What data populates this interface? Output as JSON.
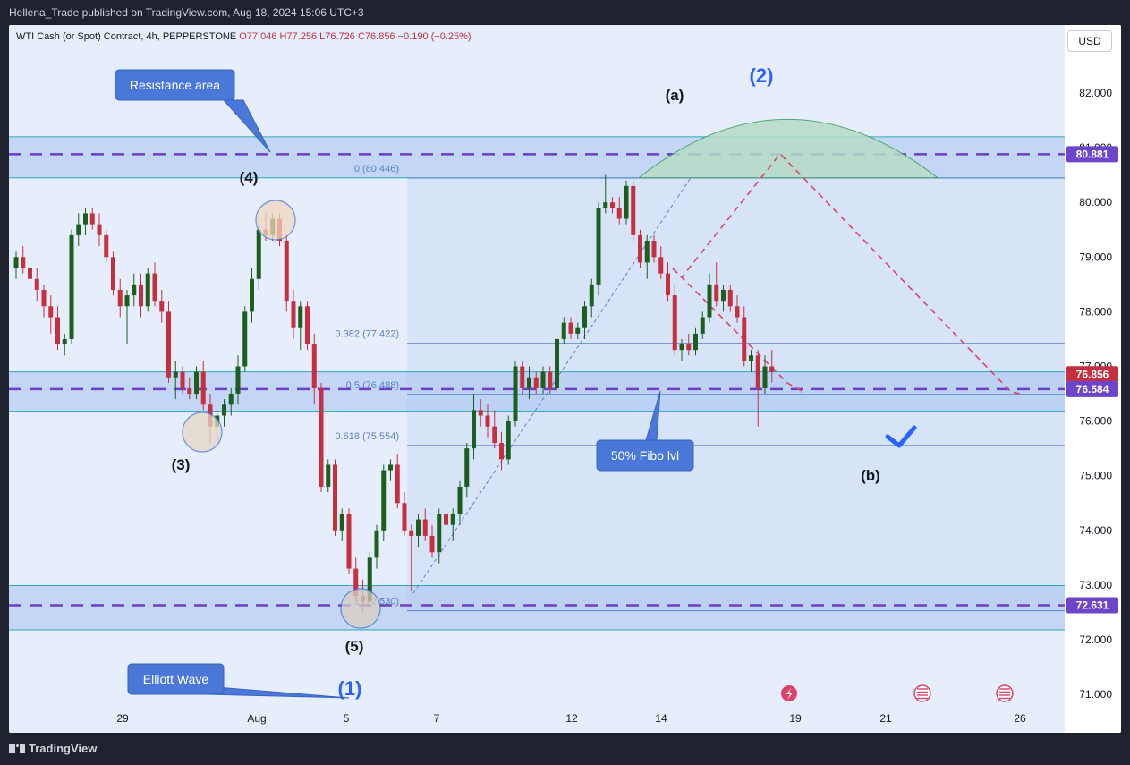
{
  "header": {
    "publisher": "Hellena_Trade published on TradingView.com, Aug 18, 2024 15:06 UTC+3"
  },
  "legend": {
    "symbol": "WTI Cash (or Spot) Contract, 4h, PEPPERSTONE",
    "open": "O77.046",
    "high": "H77.256",
    "low": "L76.726",
    "close": "C76.856",
    "change": "−0.190 (−0.25%)"
  },
  "currency": "USD",
  "footer": {
    "brand": "TradingView"
  },
  "colors": {
    "up": "#1b5e20",
    "down": "#c62f3f",
    "zone": "#a6c3f2",
    "dash": "#6c3fc4",
    "badge_purple": "#6c45c8",
    "badge_red": "#c62f3f"
  },
  "chart_data": {
    "type": "candlestick",
    "y_axis": {
      "range": [
        70.6,
        83.2
      ],
      "ticks": [
        "82.000",
        "81.000",
        "80.000",
        "79.000",
        "78.000",
        "77.000",
        "76.000",
        "75.000",
        "74.000",
        "73.000",
        "72.000",
        "71.000"
      ]
    },
    "x_axis": {
      "ticks": [
        "29",
        "Aug",
        "5",
        "7",
        "12",
        "14",
        "19",
        "21",
        "26"
      ]
    },
    "price_badges": [
      {
        "value": "80.881",
        "price": 80.881,
        "color": "#6c45c8"
      },
      {
        "value": "76.856",
        "price": 76.856,
        "color": "#c62f3f"
      },
      {
        "value": "76.584",
        "price": 76.584,
        "color": "#6c45c8"
      },
      {
        "value": "72.631",
        "price": 72.631,
        "color": "#6c45c8"
      }
    ],
    "zones": [
      {
        "top": 81.2,
        "bottom": 80.45
      },
      {
        "top": 76.9,
        "bottom": 76.18
      },
      {
        "top": 72.99,
        "bottom": 72.18
      }
    ],
    "dashed_levels": [
      80.881,
      76.584,
      72.631
    ],
    "fib": {
      "from": 72.53,
      "to": 80.446,
      "levels": [
        {
          "label": "0 (80.446)",
          "price": 80.446
        },
        {
          "label": "0.382 (77.422)",
          "price": 77.422
        },
        {
          "label": "0.5 (76.488)",
          "price": 76.488
        },
        {
          "label": "0.618 (75.554)",
          "price": 75.554
        },
        {
          "label": "1 (72.530)",
          "price": 72.53
        }
      ]
    },
    "waves": [
      {
        "label": "(4)"
      },
      {
        "label": "(3)"
      },
      {
        "label": "(5)"
      },
      {
        "label": "(a)"
      },
      {
        "label": "(b)"
      }
    ],
    "big_waves": [
      {
        "label": "(2)"
      },
      {
        "label": "(1)"
      }
    ],
    "callouts": [
      {
        "label": "Resistance area"
      },
      {
        "label": "50% Fibo lvl"
      },
      {
        "label": "Elliott Wave"
      }
    ],
    "candles": [
      [
        78.8,
        79.1,
        78.6,
        79.0
      ],
      [
        79.0,
        79.2,
        78.7,
        78.8
      ],
      [
        78.8,
        79.0,
        78.5,
        78.6
      ],
      [
        78.6,
        78.8,
        78.2,
        78.4
      ],
      [
        78.4,
        78.5,
        77.9,
        78.1
      ],
      [
        78.1,
        78.3,
        77.6,
        77.9
      ],
      [
        77.9,
        78.1,
        77.3,
        77.4
      ],
      [
        77.4,
        77.6,
        77.2,
        77.5
      ],
      [
        77.5,
        79.5,
        77.4,
        79.4
      ],
      [
        79.4,
        79.8,
        79.2,
        79.6
      ],
      [
        79.6,
        79.9,
        79.4,
        79.8
      ],
      [
        79.8,
        79.9,
        79.5,
        79.6
      ],
      [
        79.6,
        79.8,
        79.2,
        79.4
      ],
      [
        79.4,
        79.5,
        78.9,
        79.0
      ],
      [
        79.0,
        79.1,
        78.3,
        78.4
      ],
      [
        78.4,
        78.6,
        77.9,
        78.1
      ],
      [
        78.1,
        78.4,
        77.4,
        78.3
      ],
      [
        78.3,
        78.7,
        78.1,
        78.5
      ],
      [
        78.5,
        78.7,
        77.9,
        78.1
      ],
      [
        78.1,
        78.8,
        78.0,
        78.7
      ],
      [
        78.7,
        78.9,
        78.1,
        78.2
      ],
      [
        78.2,
        78.4,
        77.8,
        78.0
      ],
      [
        78.0,
        78.2,
        76.7,
        76.8
      ],
      [
        76.8,
        77.1,
        76.4,
        76.9
      ],
      [
        76.9,
        77.0,
        76.5,
        76.6
      ],
      [
        76.6,
        76.8,
        76.4,
        76.5
      ],
      [
        76.5,
        77.0,
        76.4,
        76.9
      ],
      [
        76.9,
        77.1,
        76.2,
        76.3
      ],
      [
        76.3,
        76.5,
        75.6,
        75.9
      ],
      [
        75.9,
        76.2,
        75.6,
        76.1
      ],
      [
        76.1,
        76.4,
        75.9,
        76.3
      ],
      [
        76.3,
        76.6,
        76.1,
        76.5
      ],
      [
        76.5,
        77.2,
        76.3,
        77.0
      ],
      [
        77.0,
        78.1,
        76.9,
        78.0
      ],
      [
        78.0,
        78.8,
        77.8,
        78.6
      ],
      [
        78.6,
        79.7,
        78.4,
        79.5
      ],
      [
        79.5,
        79.8,
        79.3,
        79.4
      ],
      [
        79.4,
        79.8,
        79.3,
        79.7
      ],
      [
        79.7,
        79.8,
        79.2,
        79.3
      ],
      [
        79.3,
        79.4,
        78.0,
        78.2
      ],
      [
        78.2,
        78.4,
        77.5,
        77.7
      ],
      [
        77.7,
        78.2,
        77.3,
        78.1
      ],
      [
        78.1,
        78.2,
        77.3,
        77.4
      ],
      [
        77.4,
        77.6,
        76.3,
        76.6
      ],
      [
        76.6,
        76.7,
        74.7,
        74.8
      ],
      [
        74.8,
        75.3,
        74.7,
        75.2
      ],
      [
        75.2,
        75.3,
        73.9,
        74.0
      ],
      [
        74.0,
        74.4,
        73.8,
        74.3
      ],
      [
        74.3,
        74.4,
        73.2,
        73.3
      ],
      [
        73.3,
        73.5,
        72.7,
        72.8
      ],
      [
        72.8,
        73.1,
        72.5,
        72.7
      ],
      [
        72.7,
        73.6,
        72.6,
        73.5
      ],
      [
        73.5,
        74.1,
        73.3,
        74.0
      ],
      [
        74.0,
        75.2,
        73.8,
        75.1
      ],
      [
        75.1,
        75.3,
        74.9,
        75.2
      ],
      [
        75.2,
        75.4,
        74.4,
        74.5
      ],
      [
        74.5,
        74.7,
        73.9,
        74.0
      ],
      [
        74.0,
        74.1,
        72.9,
        73.9
      ],
      [
        73.9,
        74.3,
        73.7,
        74.2
      ],
      [
        74.2,
        74.4,
        73.8,
        73.9
      ],
      [
        73.9,
        74.1,
        73.5,
        73.6
      ],
      [
        73.6,
        74.4,
        73.4,
        74.3
      ],
      [
        74.3,
        74.8,
        74.0,
        74.1
      ],
      [
        74.1,
        74.4,
        73.8,
        74.3
      ],
      [
        74.3,
        74.9,
        74.1,
        74.8
      ],
      [
        74.8,
        75.6,
        74.6,
        75.5
      ],
      [
        75.5,
        76.5,
        75.3,
        76.2
      ],
      [
        76.2,
        76.4,
        75.9,
        76.1
      ],
      [
        76.1,
        76.3,
        75.7,
        75.9
      ],
      [
        75.9,
        76.2,
        75.5,
        75.6
      ],
      [
        75.6,
        75.8,
        75.1,
        75.3
      ],
      [
        75.3,
        76.1,
        75.2,
        76.0
      ],
      [
        76.0,
        77.1,
        75.9,
        77.0
      ],
      [
        77.0,
        77.1,
        76.5,
        76.6
      ],
      [
        76.6,
        77.0,
        76.4,
        76.8
      ],
      [
        76.8,
        76.9,
        76.5,
        76.6
      ],
      [
        76.6,
        77.0,
        76.5,
        76.9
      ],
      [
        76.9,
        77.0,
        76.5,
        76.6
      ],
      [
        76.6,
        77.6,
        76.5,
        77.5
      ],
      [
        77.5,
        77.9,
        77.4,
        77.8
      ],
      [
        77.8,
        77.9,
        77.5,
        77.6
      ],
      [
        77.6,
        77.8,
        77.5,
        77.7
      ],
      [
        77.7,
        78.2,
        77.5,
        78.1
      ],
      [
        78.1,
        78.6,
        77.9,
        78.5
      ],
      [
        78.5,
        80.0,
        78.3,
        79.9
      ],
      [
        79.9,
        80.5,
        79.8,
        80.0
      ],
      [
        80.0,
        80.1,
        79.8,
        79.9
      ],
      [
        79.9,
        80.1,
        79.6,
        79.7
      ],
      [
        79.7,
        80.4,
        79.6,
        80.3
      ],
      [
        80.3,
        80.4,
        79.3,
        79.4
      ],
      [
        79.4,
        79.5,
        78.8,
        78.9
      ],
      [
        78.9,
        79.4,
        78.6,
        79.3
      ],
      [
        79.3,
        79.4,
        78.9,
        79.0
      ],
      [
        79.0,
        79.2,
        78.6,
        78.7
      ],
      [
        78.7,
        78.9,
        78.2,
        78.3
      ],
      [
        78.3,
        78.5,
        77.2,
        77.3
      ],
      [
        77.3,
        77.5,
        77.1,
        77.4
      ],
      [
        77.4,
        77.6,
        77.2,
        77.3
      ],
      [
        77.3,
        77.7,
        77.2,
        77.6
      ],
      [
        77.6,
        78.0,
        77.5,
        77.9
      ],
      [
        77.9,
        78.7,
        77.8,
        78.5
      ],
      [
        78.5,
        78.9,
        78.1,
        78.2
      ],
      [
        78.2,
        78.5,
        78.0,
        78.4
      ],
      [
        78.4,
        78.5,
        78.0,
        78.1
      ],
      [
        78.1,
        78.3,
        77.8,
        77.9
      ],
      [
        77.9,
        78.1,
        77.0,
        77.1
      ],
      [
        77.1,
        77.3,
        76.9,
        77.2
      ],
      [
        77.2,
        77.3,
        75.9,
        76.6
      ],
      [
        76.6,
        77.2,
        76.5,
        77.0
      ],
      [
        77.0,
        77.3,
        76.7,
        76.9
      ]
    ]
  }
}
